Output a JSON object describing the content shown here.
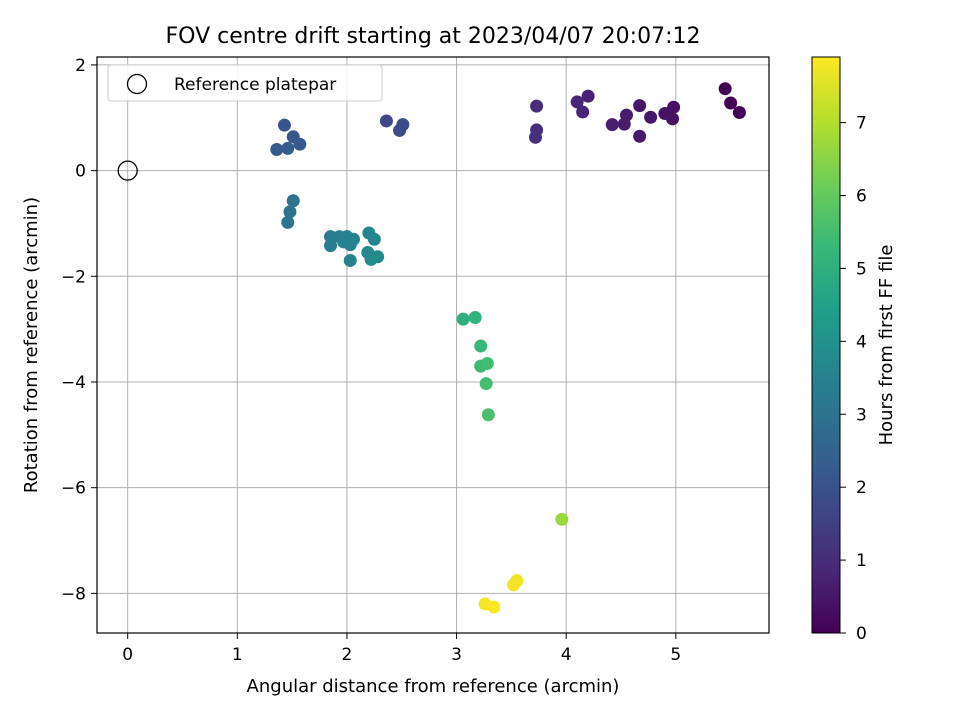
{
  "chart_data": {
    "type": "scatter",
    "title": "FOV centre drift starting at 2023/04/07 20:07:12",
    "xlabel": "Angular distance from reference (arcmin)",
    "ylabel": "Rotation from reference (arcmin)",
    "xlim": [
      -0.28,
      5.85
    ],
    "ylim": [
      -8.75,
      2.15
    ],
    "xticks": [
      0,
      1,
      2,
      3,
      4,
      5
    ],
    "yticks": [
      2,
      0,
      -2,
      -4,
      -6,
      -8
    ],
    "xtick_labels": [
      "0",
      "1",
      "2",
      "3",
      "4",
      "5"
    ],
    "ytick_labels": [
      "2",
      "0",
      "−2",
      "−4",
      "−6",
      "−8"
    ],
    "grid": true,
    "legend": {
      "placement": "top-left",
      "entries": [
        "Reference platepar"
      ]
    },
    "reference_point": {
      "x": 0,
      "y": 0
    },
    "colorbar": {
      "label": "Hours from first FF file",
      "colormap": "viridis",
      "range": [
        0,
        7.9
      ],
      "ticks": [
        0,
        1,
        2,
        3,
        4,
        5,
        6,
        7
      ],
      "tick_labels": [
        "0",
        "1",
        "2",
        "3",
        "4",
        "5",
        "6",
        "7"
      ]
    },
    "points": [
      {
        "x": 5.45,
        "y": 1.55,
        "h": 0.0
      },
      {
        "x": 5.5,
        "y": 1.28,
        "h": 0.05
      },
      {
        "x": 5.58,
        "y": 1.1,
        "h": 0.1
      },
      {
        "x": 4.98,
        "y": 1.2,
        "h": 0.35
      },
      {
        "x": 4.9,
        "y": 1.08,
        "h": 0.4
      },
      {
        "x": 4.97,
        "y": 0.98,
        "h": 0.4
      },
      {
        "x": 4.77,
        "y": 1.01,
        "h": 0.5
      },
      {
        "x": 4.67,
        "y": 1.23,
        "h": 0.5
      },
      {
        "x": 4.67,
        "y": 0.65,
        "h": 0.55
      },
      {
        "x": 4.55,
        "y": 1.05,
        "h": 0.6
      },
      {
        "x": 4.53,
        "y": 0.88,
        "h": 0.6
      },
      {
        "x": 4.42,
        "y": 0.87,
        "h": 0.65
      },
      {
        "x": 4.2,
        "y": 1.41,
        "h": 0.75
      },
      {
        "x": 4.1,
        "y": 1.3,
        "h": 0.8
      },
      {
        "x": 4.15,
        "y": 1.11,
        "h": 0.8
      },
      {
        "x": 3.73,
        "y": 1.22,
        "h": 1.0
      },
      {
        "x": 3.73,
        "y": 0.77,
        "h": 1.05
      },
      {
        "x": 3.72,
        "y": 0.63,
        "h": 1.1
      },
      {
        "x": 2.36,
        "y": 0.94,
        "h": 1.7
      },
      {
        "x": 2.51,
        "y": 0.87,
        "h": 1.8
      },
      {
        "x": 2.48,
        "y": 0.76,
        "h": 1.8
      },
      {
        "x": 1.43,
        "y": 0.86,
        "h": 2.1
      },
      {
        "x": 1.51,
        "y": 0.64,
        "h": 2.15
      },
      {
        "x": 1.57,
        "y": 0.5,
        "h": 2.2
      },
      {
        "x": 1.36,
        "y": 0.4,
        "h": 2.25
      },
      {
        "x": 1.46,
        "y": 0.42,
        "h": 2.3
      },
      {
        "x": 1.51,
        "y": -0.57,
        "h": 3.0
      },
      {
        "x": 1.48,
        "y": -0.78,
        "h": 3.05
      },
      {
        "x": 1.46,
        "y": -0.98,
        "h": 3.1
      },
      {
        "x": 1.85,
        "y": -1.25,
        "h": 3.3
      },
      {
        "x": 1.85,
        "y": -1.42,
        "h": 3.35
      },
      {
        "x": 1.93,
        "y": -1.25,
        "h": 3.4
      },
      {
        "x": 1.97,
        "y": -1.35,
        "h": 3.45
      },
      {
        "x": 2.0,
        "y": -1.25,
        "h": 3.5
      },
      {
        "x": 2.03,
        "y": -1.4,
        "h": 3.5
      },
      {
        "x": 2.06,
        "y": -1.3,
        "h": 3.55
      },
      {
        "x": 2.03,
        "y": -1.7,
        "h": 3.55
      },
      {
        "x": 2.2,
        "y": -1.18,
        "h": 3.6
      },
      {
        "x": 2.25,
        "y": -1.3,
        "h": 3.65
      },
      {
        "x": 2.19,
        "y": -1.55,
        "h": 3.7
      },
      {
        "x": 2.22,
        "y": -1.68,
        "h": 3.75
      },
      {
        "x": 2.28,
        "y": -1.63,
        "h": 3.8
      },
      {
        "x": 3.06,
        "y": -2.81,
        "h": 5.0
      },
      {
        "x": 3.17,
        "y": -2.78,
        "h": 5.1
      },
      {
        "x": 3.22,
        "y": -3.32,
        "h": 5.3
      },
      {
        "x": 3.22,
        "y": -3.7,
        "h": 5.4
      },
      {
        "x": 3.28,
        "y": -3.65,
        "h": 5.45
      },
      {
        "x": 3.27,
        "y": -4.03,
        "h": 5.5
      },
      {
        "x": 3.29,
        "y": -4.62,
        "h": 5.6
      },
      {
        "x": 3.96,
        "y": -6.6,
        "h": 6.7
      },
      {
        "x": 3.55,
        "y": -7.76,
        "h": 7.7
      },
      {
        "x": 3.52,
        "y": -7.84,
        "h": 7.75
      },
      {
        "x": 3.26,
        "y": -8.2,
        "h": 7.8
      },
      {
        "x": 3.34,
        "y": -8.26,
        "h": 7.9
      }
    ]
  }
}
